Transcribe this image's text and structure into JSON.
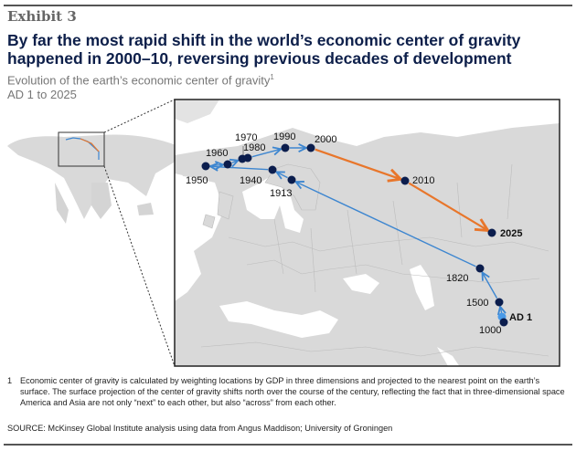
{
  "header": {
    "exhibit": "Exhibit 3",
    "title": "By far the most rapid shift in the world’s economic center of gravity happened in 2000–10, reversing previous decades of development",
    "subtitle": "Evolution of the earth’s economic center of gravity",
    "subtitle_footnote_marker": "1",
    "range": "AD 1 to 2025"
  },
  "map": {
    "colors": {
      "land": "#d9d9d9",
      "sea": "#ffffff",
      "historic_path": "#3d86d0",
      "recent_path": "#e8762b",
      "point": "#0b1d4d",
      "ad1_point": "#4a9ae8"
    },
    "points": [
      {
        "year": "AD 1",
        "label": "AD 1",
        "highlight": true
      },
      {
        "year": "1000",
        "label": "1000"
      },
      {
        "year": "1500",
        "label": "1500"
      },
      {
        "year": "1820",
        "label": "1820"
      },
      {
        "year": "1913",
        "label": "1913"
      },
      {
        "year": "1940",
        "label": "1940"
      },
      {
        "year": "1950",
        "label": "1950"
      },
      {
        "year": "1960",
        "label": "1960"
      },
      {
        "year": "1970",
        "label": "1970"
      },
      {
        "year": "1980",
        "label": "1980"
      },
      {
        "year": "1990",
        "label": "1990"
      },
      {
        "year": "2000",
        "label": "2000"
      },
      {
        "year": "2010",
        "label": "2010"
      },
      {
        "year": "2025",
        "label": "2025",
        "bold": true
      }
    ]
  },
  "footer": {
    "footnote_number": "1",
    "footnote": "Economic center of gravity is calculated by weighting locations by GDP in three dimensions and projected to the nearest point on the earth’s surface. The surface projection of the center of gravity shifts north over the course of the century, reflecting the fact that in three-dimensional space America and Asia are not only “next” to each other, but also “across” from each other.",
    "source": "SOURCE: McKinsey Global Institute analysis using data from Angus Maddison; University of Groningen"
  }
}
